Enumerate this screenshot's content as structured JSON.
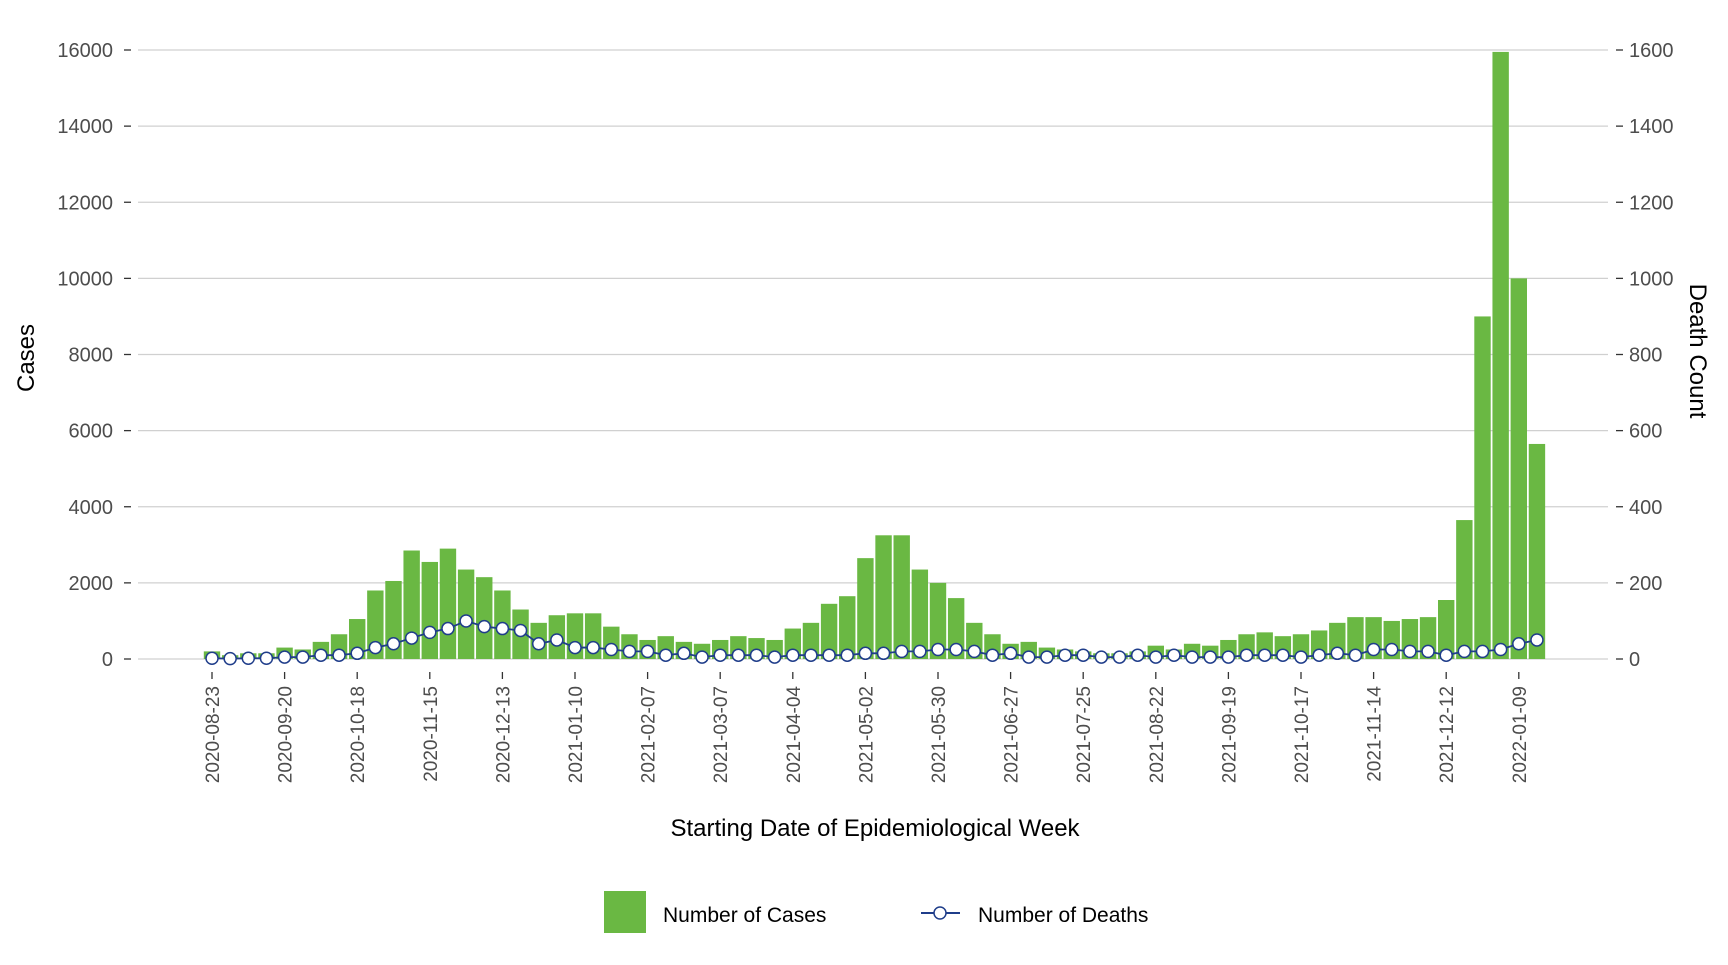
{
  "chart_data": {
    "type": "bar",
    "title": "",
    "xlabel": "Starting Date of Epidemiological Week",
    "ylabel": "Cases",
    "y2label": "Death Count",
    "ylim": [
      0,
      16000
    ],
    "y2lim": [
      0,
      1600
    ],
    "yticks": [
      0,
      2000,
      4000,
      6000,
      8000,
      10000,
      12000,
      14000,
      16000
    ],
    "y2ticks": [
      0,
      200,
      400,
      600,
      800,
      1000,
      1200,
      1400,
      1600
    ],
    "grid": true,
    "legend_position": "bottom",
    "colors": {
      "cases": "#6ab843",
      "deaths_line": "#1f3d8a",
      "deaths_marker_fill": "#ffffff",
      "grid": "#d0d0d0"
    },
    "tick_labels": [
      "2020-08-23",
      "2020-09-20",
      "2020-10-18",
      "2020-11-15",
      "2020-12-13",
      "2021-01-10",
      "2021-02-07",
      "2021-03-07",
      "2021-04-04",
      "2021-05-02",
      "2021-05-30",
      "2021-06-27",
      "2021-07-25",
      "2021-08-22",
      "2021-09-19",
      "2021-10-17",
      "2021-11-14",
      "2021-12-12",
      "2022-01-09"
    ],
    "x": [
      "2020-08-23",
      "2020-08-30",
      "2020-09-06",
      "2020-09-13",
      "2020-09-20",
      "2020-09-27",
      "2020-10-04",
      "2020-10-11",
      "2020-10-18",
      "2020-10-25",
      "2020-11-01",
      "2020-11-08",
      "2020-11-15",
      "2020-11-22",
      "2020-11-29",
      "2020-12-06",
      "2020-12-13",
      "2020-12-20",
      "2020-12-27",
      "2021-01-03",
      "2021-01-10",
      "2021-01-17",
      "2021-01-24",
      "2021-01-31",
      "2021-02-07",
      "2021-02-14",
      "2021-02-21",
      "2021-02-28",
      "2021-03-07",
      "2021-03-14",
      "2021-03-21",
      "2021-03-28",
      "2021-04-04",
      "2021-04-11",
      "2021-04-18",
      "2021-04-25",
      "2021-05-02",
      "2021-05-09",
      "2021-05-16",
      "2021-05-23",
      "2021-05-30",
      "2021-06-06",
      "2021-06-13",
      "2021-06-20",
      "2021-06-27",
      "2021-07-04",
      "2021-07-11",
      "2021-07-18",
      "2021-07-25",
      "2021-08-01",
      "2021-08-08",
      "2021-08-15",
      "2021-08-22",
      "2021-08-29",
      "2021-09-05",
      "2021-09-12",
      "2021-09-19",
      "2021-09-26",
      "2021-10-03",
      "2021-10-10",
      "2021-10-17",
      "2021-10-24",
      "2021-10-31",
      "2021-11-07",
      "2021-11-14",
      "2021-11-21",
      "2021-11-28",
      "2021-12-05",
      "2021-12-12",
      "2021-12-19",
      "2021-12-26",
      "2022-01-02",
      "2022-01-09",
      "2022-01-16"
    ],
    "series": [
      {
        "name": "Number of Cases",
        "axis": "left",
        "values": [
          200,
          100,
          150,
          150,
          300,
          250,
          450,
          650,
          1050,
          1800,
          2050,
          2850,
          2550,
          2900,
          2350,
          2150,
          1800,
          1300,
          950,
          1150,
          1200,
          1200,
          850,
          650,
          500,
          600,
          450,
          400,
          500,
          600,
          550,
          500,
          800,
          950,
          1450,
          1650,
          2650,
          3250,
          3250,
          2350,
          2000,
          1600,
          950,
          650,
          400,
          450,
          300,
          250,
          200,
          150,
          150,
          200,
          350,
          250,
          400,
          350,
          500,
          650,
          700,
          600,
          650,
          750,
          950,
          1100,
          1100,
          1000,
          1050,
          1100,
          1550,
          3650,
          9000,
          15950,
          10000,
          5650
        ]
      },
      {
        "name": "Number of Deaths",
        "axis": "right",
        "values": [
          2,
          1,
          2,
          2,
          5,
          5,
          10,
          10,
          15,
          30,
          40,
          55,
          70,
          80,
          100,
          85,
          80,
          75,
          40,
          50,
          30,
          30,
          25,
          20,
          20,
          10,
          15,
          5,
          10,
          10,
          10,
          5,
          10,
          10,
          10,
          10,
          15,
          15,
          20,
          20,
          25,
          25,
          20,
          10,
          15,
          5,
          5,
          10,
          10,
          5,
          5,
          10,
          5,
          10,
          5,
          5,
          5,
          10,
          10,
          10,
          5,
          10,
          15,
          10,
          25,
          25,
          20,
          20,
          10,
          20,
          20,
          25,
          40,
          50
        ]
      }
    ]
  },
  "legend": {
    "cases_label": "Number of Cases",
    "deaths_label": "Number of Deaths"
  }
}
